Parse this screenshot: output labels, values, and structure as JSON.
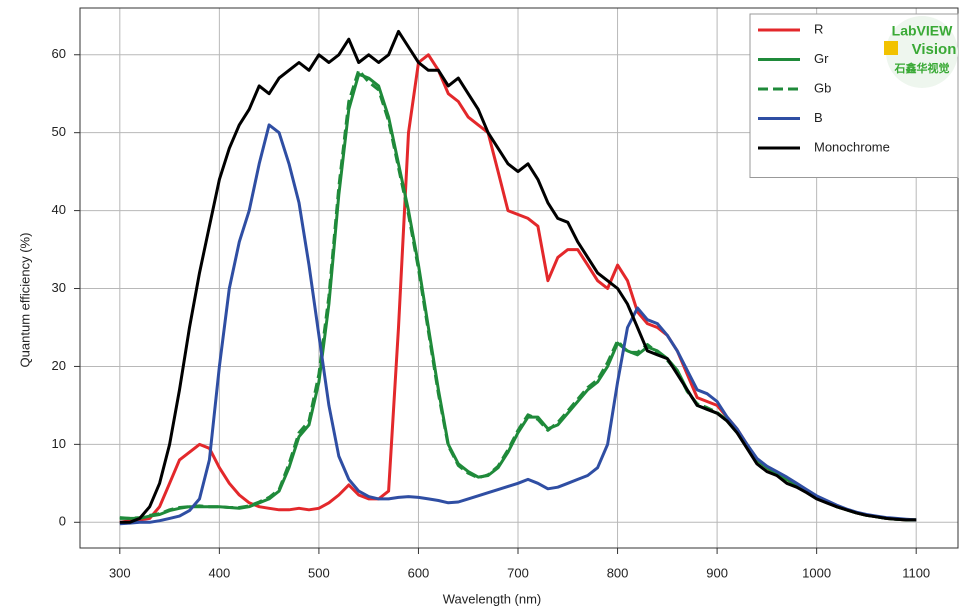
{
  "chart_data": {
    "type": "line",
    "xlabel": "Wavelength (nm)",
    "ylabel": "Quantum efficiency (%)",
    "x": [
      300,
      310,
      320,
      330,
      340,
      350,
      360,
      370,
      380,
      390,
      400,
      410,
      420,
      430,
      440,
      450,
      460,
      470,
      480,
      490,
      500,
      510,
      520,
      530,
      540,
      550,
      560,
      570,
      580,
      590,
      600,
      610,
      620,
      630,
      640,
      650,
      660,
      670,
      680,
      690,
      700,
      710,
      720,
      730,
      740,
      750,
      760,
      770,
      780,
      790,
      800,
      810,
      820,
      830,
      840,
      850,
      860,
      870,
      880,
      890,
      900,
      910,
      920,
      930,
      940,
      950,
      960,
      970,
      980,
      990,
      1000,
      1010,
      1020,
      1030,
      1040,
      1050,
      1060,
      1070,
      1080,
      1090,
      1100
    ],
    "series": [
      {
        "name": "R",
        "color": "#e3282b",
        "linestyle": "solid",
        "values": [
          0,
          0.2,
          0.3,
          0.5,
          2,
          5,
          8,
          9,
          10,
          9.5,
          7,
          5,
          3.5,
          2.5,
          2,
          1.8,
          1.6,
          1.6,
          1.8,
          1.6,
          1.8,
          2.5,
          3.5,
          4.8,
          3.5,
          3,
          3,
          4,
          25,
          50,
          59,
          60,
          58,
          55,
          54,
          52,
          51,
          50,
          45,
          40,
          39.5,
          39,
          38,
          31,
          34,
          35,
          35,
          33,
          31,
          30,
          33,
          31,
          27,
          25.5,
          25,
          24,
          22,
          19,
          16,
          15.5,
          15,
          13.5,
          12,
          10,
          8,
          7,
          6,
          5.5,
          4.8,
          4,
          3.2,
          2.6,
          2,
          1.6,
          1.2,
          0.9,
          0.7,
          0.5,
          0.4,
          0.3,
          0.3
        ]
      },
      {
        "name": "Gr",
        "color": "#1f8a3a",
        "linestyle": "solid",
        "values": [
          0.5,
          0.5,
          0.5,
          0.8,
          1,
          1.5,
          1.8,
          2,
          2,
          2,
          2,
          1.9,
          1.8,
          2,
          2.5,
          3,
          4,
          7,
          11,
          12.5,
          18,
          28,
          42,
          53,
          57.5,
          57,
          56,
          52,
          46,
          40,
          33,
          25,
          17,
          10,
          7.5,
          6.5,
          5.8,
          6,
          7,
          9,
          11.5,
          13.5,
          13.5,
          12,
          12.5,
          14,
          15.5,
          17,
          18,
          20,
          23,
          22,
          21.5,
          22.5,
          22,
          21,
          19.5,
          17,
          15,
          14.5,
          14,
          13,
          11.5,
          10,
          8,
          7,
          6.3,
          5.5,
          4.8,
          4,
          3.2,
          2.6,
          2,
          1.6,
          1.2,
          0.9,
          0.7,
          0.5,
          0.4,
          0.3,
          0.3
        ]
      },
      {
        "name": "Gb",
        "color": "#1f8a3a",
        "linestyle": "dashed",
        "values": [
          0.6,
          0.5,
          0.6,
          0.9,
          1.1,
          1.6,
          1.9,
          2,
          2.1,
          2,
          2,
          1.9,
          1.9,
          2.1,
          2.6,
          3.2,
          4.2,
          7.5,
          11.5,
          13,
          19,
          29,
          43,
          54,
          58,
          56.5,
          55.5,
          51.5,
          45.5,
          39.5,
          32.5,
          24.5,
          16.5,
          9.8,
          7.3,
          6.3,
          5.7,
          6.1,
          7.2,
          9.3,
          11.8,
          13.8,
          13.2,
          11.8,
          12.8,
          14.3,
          15.8,
          17.3,
          18.3,
          20.5,
          23.3,
          21.8,
          21.8,
          22.8,
          21.8,
          20.8,
          19.3,
          16.8,
          15.2,
          14.7,
          14.1,
          13.1,
          11.6,
          10,
          8.1,
          7,
          6.3,
          5.5,
          4.8,
          4,
          3.2,
          2.6,
          2,
          1.6,
          1.2,
          0.9,
          0.7,
          0.5,
          0.4,
          0.3,
          0.3
        ]
      },
      {
        "name": "B",
        "color": "#2f4ea3",
        "linestyle": "solid",
        "values": [
          -0.2,
          -0.1,
          0,
          0,
          0.2,
          0.5,
          0.8,
          1.5,
          3,
          8,
          20,
          30,
          36,
          40,
          46,
          51,
          50,
          46,
          41,
          33,
          24,
          15,
          8.5,
          5.5,
          4,
          3.3,
          3,
          3,
          3.2,
          3.3,
          3.2,
          3,
          2.8,
          2.5,
          2.6,
          3,
          3.4,
          3.8,
          4.2,
          4.6,
          5,
          5.5,
          5,
          4.3,
          4.5,
          5,
          5.5,
          6,
          7,
          10,
          18,
          25,
          27.5,
          26,
          25.5,
          24,
          22,
          19.5,
          17,
          16.5,
          15.5,
          13.5,
          12,
          10,
          8.2,
          7.2,
          6.5,
          5.8,
          5,
          4.2,
          3.4,
          2.8,
          2.2,
          1.7,
          1.3,
          1,
          0.8,
          0.6,
          0.5,
          0.4,
          0.3
        ]
      },
      {
        "name": "Monochrome",
        "color": "#000000",
        "linestyle": "solid",
        "values": [
          0,
          0,
          0.5,
          2,
          5,
          10,
          17,
          25,
          32,
          38,
          44,
          48,
          51,
          53,
          56,
          55,
          57,
          58,
          59,
          58,
          60,
          59,
          60,
          62,
          59,
          60,
          59,
          60,
          63,
          61,
          59,
          58,
          58,
          56,
          57,
          55,
          53,
          50,
          48,
          46,
          45,
          46,
          44,
          41,
          39,
          38.5,
          36,
          34,
          32,
          31,
          30,
          28,
          25,
          22,
          21.5,
          21,
          19,
          17,
          15,
          14.5,
          14,
          13,
          11.5,
          9.5,
          7.5,
          6.5,
          6,
          5,
          4.5,
          3.8,
          3,
          2.5,
          2,
          1.6,
          1.2,
          0.9,
          0.7,
          0.5,
          0.4,
          0.3,
          0.3
        ]
      }
    ],
    "xlim": [
      260,
      1142
    ],
    "ylim": [
      -3.3,
      66
    ],
    "xticks": [
      300,
      400,
      500,
      600,
      700,
      800,
      900,
      1000,
      1100
    ],
    "yticks": [
      0,
      10,
      20,
      30,
      40,
      50,
      60
    ],
    "grid": true,
    "legend": "upper right",
    "watermark": [
      "LabVIEW",
      "Vision",
      "石鑫华视觉"
    ]
  }
}
